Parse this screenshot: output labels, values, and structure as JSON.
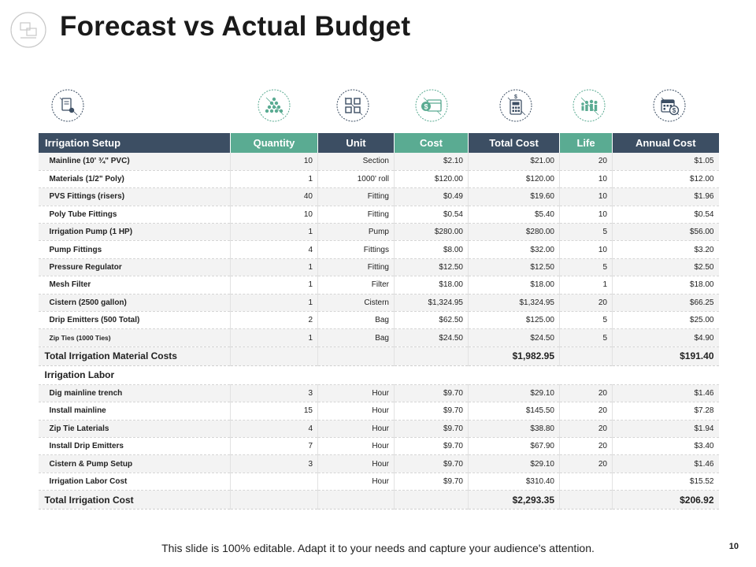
{
  "slide": {
    "title": "Forecast vs Actual Budget",
    "footer": "This slide is 100% editable. Adapt it to your needs and capture your audience's attention.",
    "page_number": "10"
  },
  "icons": [
    "receipt-icon",
    "coins-pyramid-icon",
    "grid-blocks-icon",
    "money-icon",
    "calculator-icon",
    "family-icon",
    "calendar-dollar-icon"
  ],
  "colors": {
    "header_dark": "#3c4e63",
    "header_green": "#5aab92",
    "row_alt": "#f3f3f3"
  },
  "table": {
    "headers": [
      "Irrigation Setup",
      "Quantity",
      "Unit",
      "Cost",
      "Total Cost",
      "Life",
      "Annual Cost"
    ],
    "material_rows": [
      [
        "Mainline (10' ¾\" PVC)",
        "10",
        "Section",
        "$2.10",
        "$21.00",
        "20",
        "$1.05"
      ],
      [
        "Materials (1/2\" Poly)",
        "1",
        "1000' roll",
        "$120.00",
        "$120.00",
        "10",
        "$12.00"
      ],
      [
        "PVS Fittings (risers)",
        "40",
        "Fitting",
        "$0.49",
        "$19.60",
        "10",
        "$1.96"
      ],
      [
        "Poly Tube Fittings",
        "10",
        "Fitting",
        "$0.54",
        "$5.40",
        "10",
        "$0.54"
      ],
      [
        "Irrigation Pump (1 HP)",
        "1",
        "Pump",
        "$280.00",
        "$280.00",
        "5",
        "$56.00"
      ],
      [
        "Pump Fittings",
        "4",
        "Fittings",
        "$8.00",
        "$32.00",
        "10",
        "$3.20"
      ],
      [
        "Pressure Regulator",
        "1",
        "Fitting",
        "$12.50",
        "$12.50",
        "5",
        "$2.50"
      ],
      [
        "Mesh Filter",
        "1",
        "Filter",
        "$18.00",
        "$18.00",
        "1",
        "$18.00"
      ],
      [
        "Cistern (2500 gallon)",
        "1",
        "Cistern",
        "$1,324.95",
        "$1,324.95",
        "20",
        "$66.25"
      ],
      [
        "Drip Emitters (500 Total)",
        "2",
        "Bag",
        "$62.50",
        "$125.00",
        "5",
        "$25.00"
      ],
      [
        "Zip Ties (1000 Ties)",
        "1",
        "Bag",
        "$24.50",
        "$24.50",
        "5",
        "$4.90"
      ]
    ],
    "material_total": {
      "label": "Total Irrigation Material Costs",
      "total_cost": "$1,982.95",
      "annual_cost": "$191.40"
    },
    "labor_section": "Irrigation Labor",
    "labor_rows": [
      [
        "Dig mainline trench",
        "3",
        "Hour",
        "$9.70",
        "$29.10",
        "20",
        "$1.46"
      ],
      [
        "Install mainline",
        "15",
        "Hour",
        "$9.70",
        "$145.50",
        "20",
        "$7.28"
      ],
      [
        "Zip Tie Laterials",
        "4",
        "Hour",
        "$9.70",
        "$38.80",
        "20",
        "$1.94"
      ],
      [
        "Install Drip Emitters",
        "7",
        "Hour",
        "$9.70",
        "$67.90",
        "20",
        "$3.40"
      ],
      [
        "Cistern & Pump Setup",
        "3",
        "Hour",
        "$9.70",
        "$29.10",
        "20",
        "$1.46"
      ],
      [
        "Irrigation Labor Cost",
        "",
        "Hour",
        "$9.70",
        "$310.40",
        "",
        "$15.52"
      ]
    ],
    "grand_total": {
      "label": "Total Irrigation Cost",
      "total_cost": "$2,293.35",
      "annual_cost": "$206.92"
    }
  }
}
